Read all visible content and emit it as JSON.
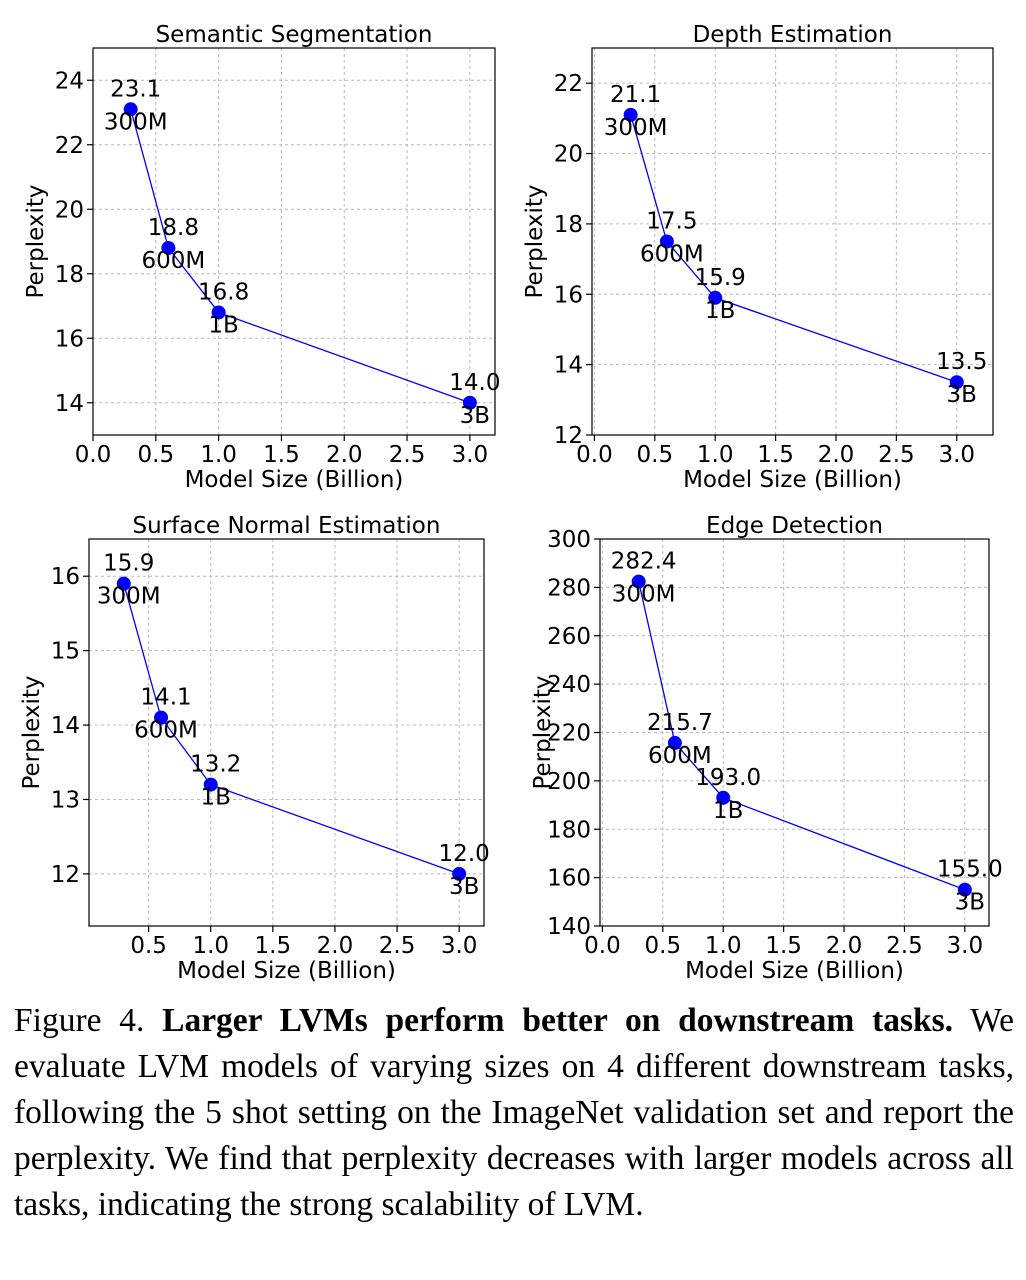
{
  "chart_data": [
    {
      "type": "line",
      "title": "Semantic Segmentation",
      "xlabel": "Model Size (Billion)",
      "ylabel": "Perplexity",
      "xlim": [
        0.0,
        3.2
      ],
      "ylim": [
        13.0,
        25.0
      ],
      "xticks": [
        "0.0",
        "0.5",
        "1.0",
        "1.5",
        "2.0",
        "2.5",
        "3.0"
      ],
      "yticks": [
        "14",
        "16",
        "18",
        "20",
        "22",
        "24"
      ],
      "grid": true,
      "x": [
        0.3,
        0.6,
        1.0,
        3.0
      ],
      "y": [
        23.1,
        18.8,
        16.8,
        14.0
      ],
      "value_labels": [
        "23.1",
        "18.8",
        "16.8",
        "14.0"
      ],
      "size_labels": [
        "300M",
        "600M",
        "1B",
        "3B"
      ],
      "color": "#0000ff"
    },
    {
      "type": "line",
      "title": "Depth Estimation",
      "xlabel": "Model Size (Billion)",
      "ylabel": "Perplexity",
      "xlim": [
        -0.02,
        3.3
      ],
      "ylim": [
        12.0,
        23.0
      ],
      "xticks": [
        "0.0",
        "0.5",
        "1.0",
        "1.5",
        "2.0",
        "2.5",
        "3.0"
      ],
      "yticks": [
        "12",
        "14",
        "16",
        "18",
        "20",
        "22"
      ],
      "grid": true,
      "x": [
        0.3,
        0.6,
        1.0,
        3.0
      ],
      "y": [
        21.1,
        17.5,
        15.9,
        13.5
      ],
      "value_labels": [
        "21.1",
        "17.5",
        "15.9",
        "13.5"
      ],
      "size_labels": [
        "300M",
        "600M",
        "1B",
        "3B"
      ],
      "color": "#0000ff"
    },
    {
      "type": "line",
      "title": "Surface Normal Estimation",
      "xlabel": "Model Size (Billion)",
      "ylabel": "Perplexity",
      "xlim": [
        0.02,
        3.2
      ],
      "ylim": [
        11.3,
        16.5
      ],
      "xticks": [
        "0.5",
        "1.0",
        "1.5",
        "2.0",
        "2.5",
        "3.0"
      ],
      "yticks": [
        "12",
        "13",
        "14",
        "15",
        "16"
      ],
      "grid": true,
      "x": [
        0.3,
        0.6,
        1.0,
        3.0
      ],
      "y": [
        15.9,
        14.1,
        13.2,
        12.0
      ],
      "value_labels": [
        "15.9",
        "14.1",
        "13.2",
        "12.0"
      ],
      "size_labels": [
        "300M",
        "600M",
        "1B",
        "3B"
      ],
      "color": "#0000ff"
    },
    {
      "type": "line",
      "title": "Edge Detection",
      "xlabel": "Model Size (Billion)",
      "ylabel": "Perplexity",
      "xlim": [
        -0.02,
        3.2
      ],
      "ylim": [
        140,
        300
      ],
      "xticks": [
        "0.0",
        "0.5",
        "1.0",
        "1.5",
        "2.0",
        "2.5",
        "3.0"
      ],
      "yticks": [
        "140",
        "160",
        "180",
        "200",
        "220",
        "240",
        "260",
        "280",
        "300"
      ],
      "grid": true,
      "x": [
        0.3,
        0.6,
        1.0,
        3.0
      ],
      "y": [
        282.4,
        215.7,
        193.0,
        155.0
      ],
      "value_labels": [
        "282.4",
        "215.7",
        "193.0",
        "155.0"
      ],
      "size_labels": [
        "300M",
        "600M",
        "1B",
        "3B"
      ],
      "color": "#0000ff"
    }
  ],
  "caption": {
    "prefix": "Figure 4.",
    "bold": "Larger LVMs perform better on downstream tasks.",
    "body": "We evaluate LVM models of varying sizes on 4 different downstream tasks, following the 5 shot setting on the ImageNet validation set and report the perplexity. We find that perplexity decreases with larger models across all tasks, indicating the strong scalability of LVM."
  }
}
